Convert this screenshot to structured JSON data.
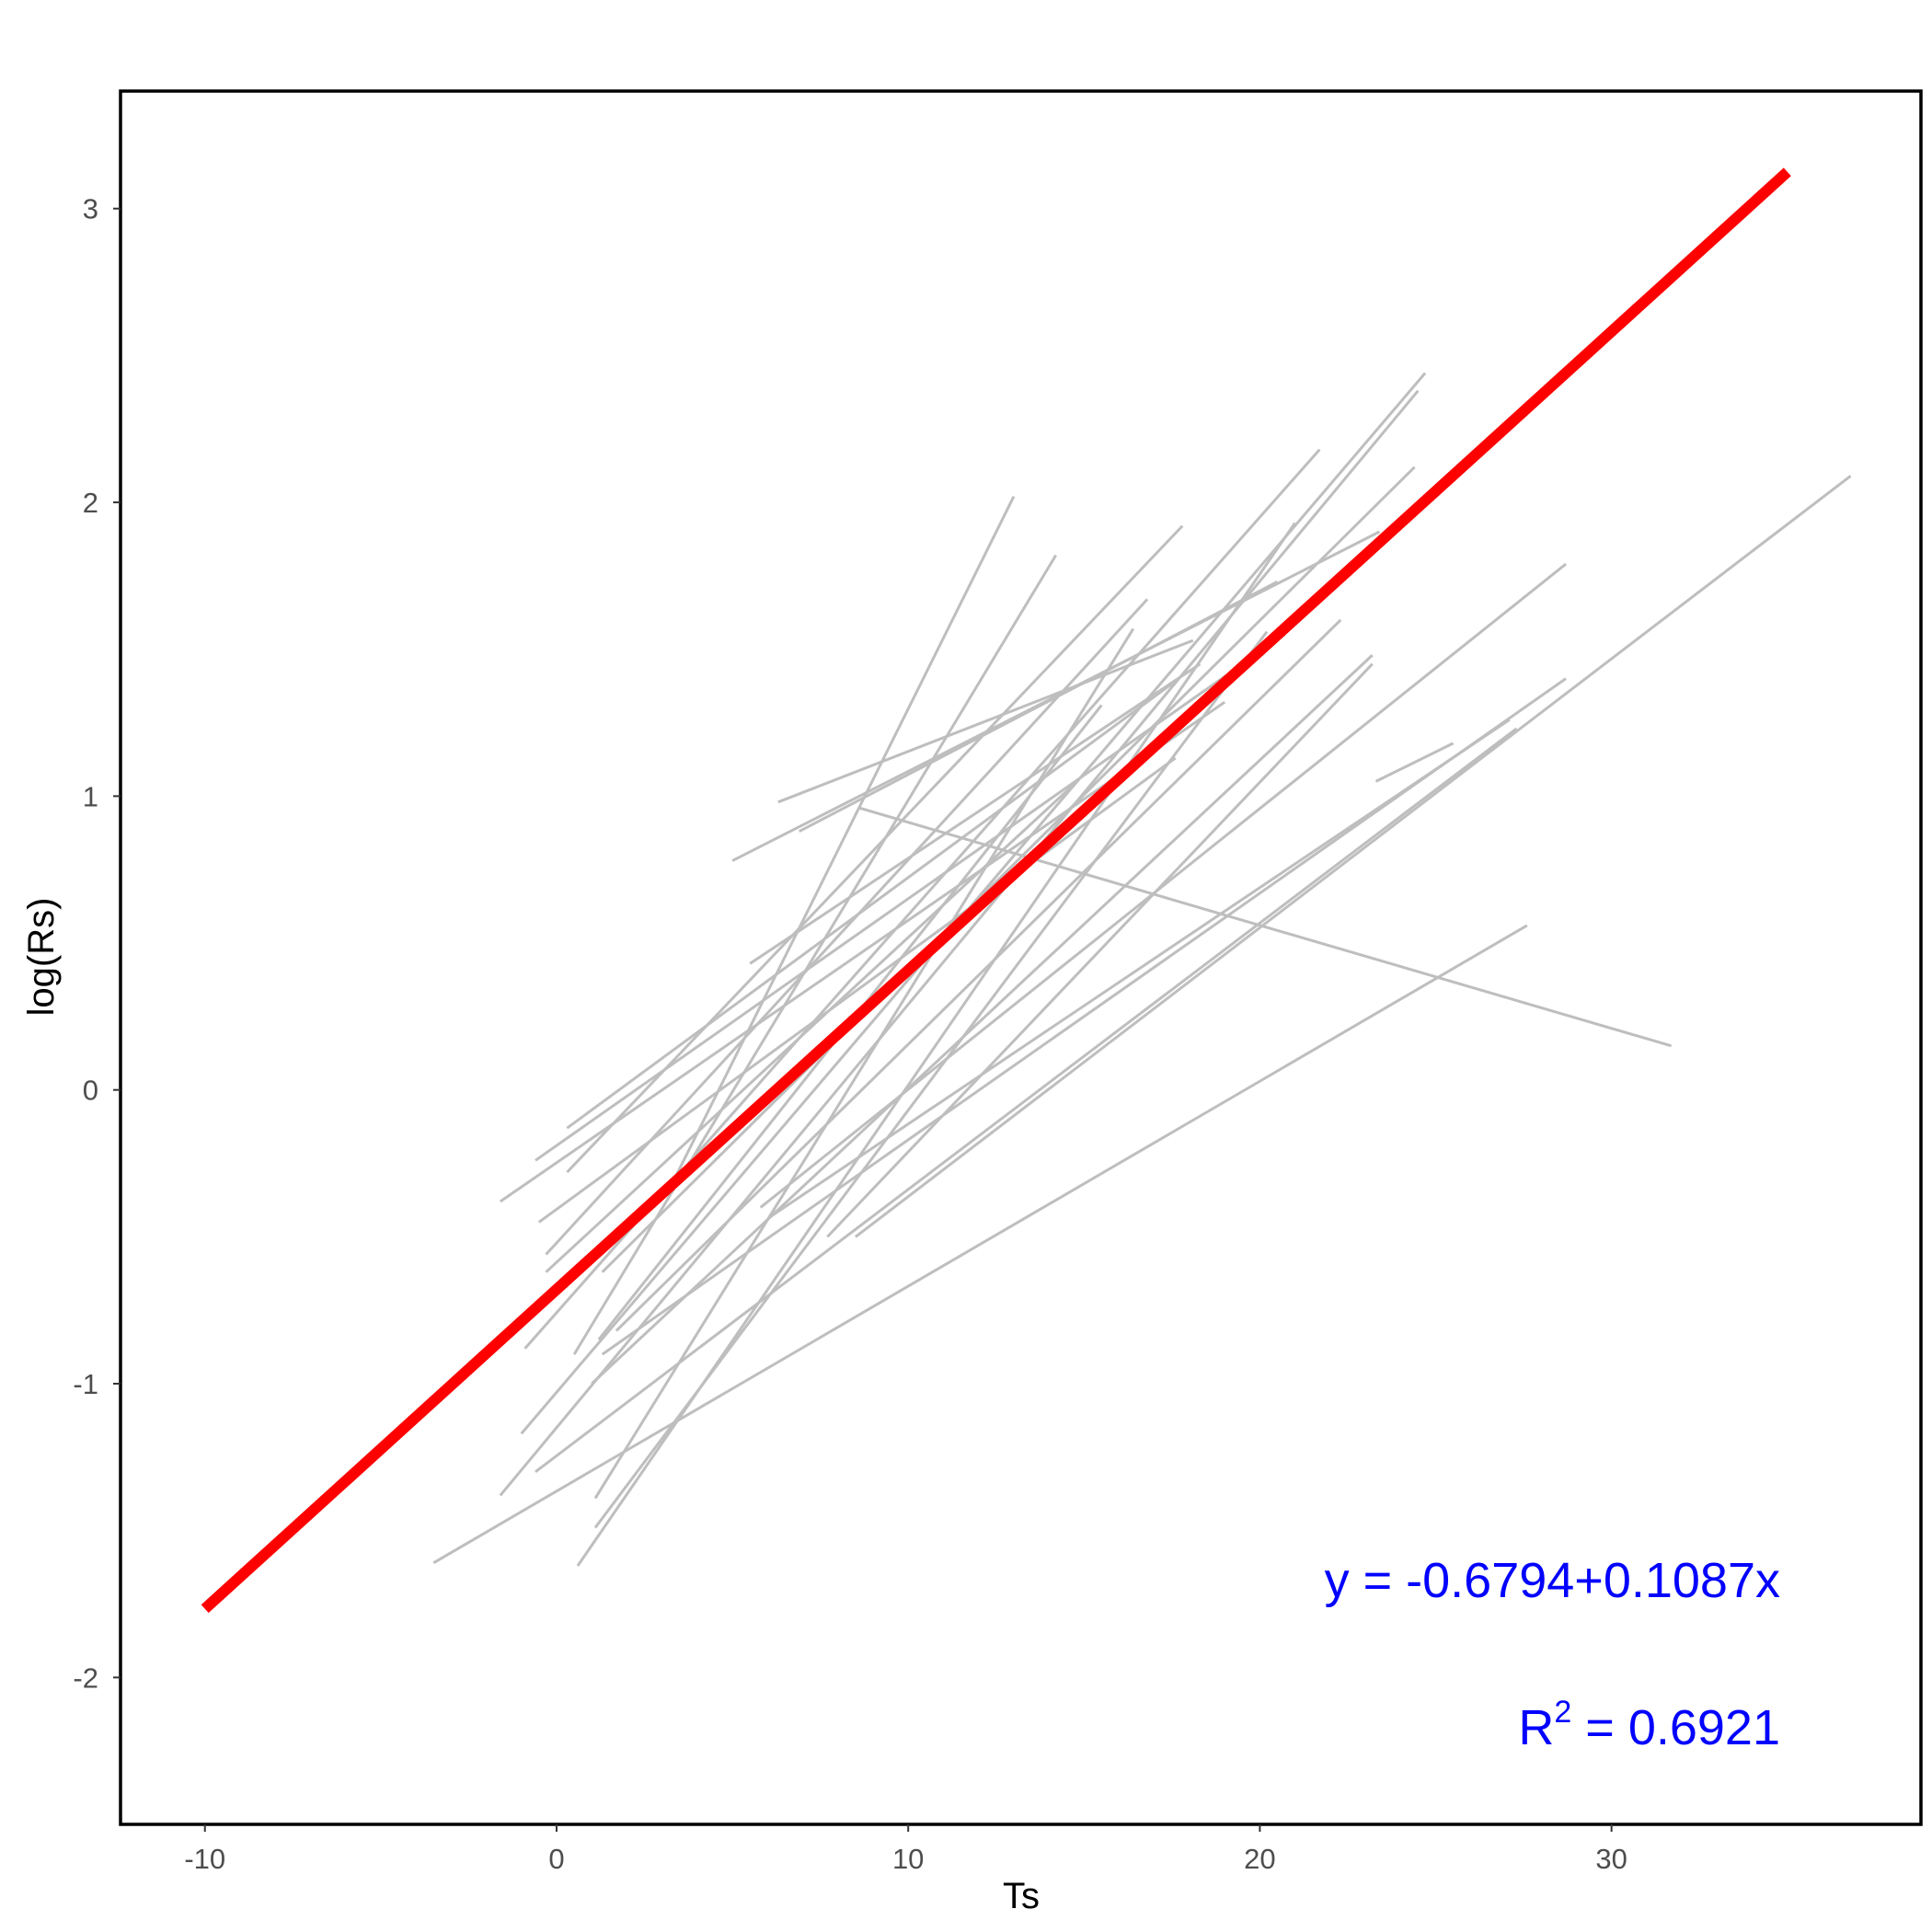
{
  "chart_data": {
    "type": "line",
    "xlabel": "Ts",
    "ylabel": "log(Rs)",
    "xlim": [
      -12.4,
      38.8
    ],
    "ylim": [
      -2.5,
      3.4
    ],
    "xticks": [
      -10,
      0,
      10,
      20,
      30
    ],
    "yticks": [
      -2,
      -1,
      0,
      1,
      2,
      3
    ],
    "grid": false,
    "fit": {
      "intercept": -0.6794,
      "slope": 0.1087,
      "x_range": [
        -10,
        35
      ],
      "color": "#ff0000"
    },
    "equation_text": "y = -0.6794+0.1087x",
    "r2_label": "R",
    "r2_sup": "2",
    "r2_value": " = 0.6921",
    "annotation_color": "#0000ff",
    "segment_color": "#bebebe",
    "segments": [
      [
        [
          13.0,
          2.02
        ],
        [
          3.2,
          -0.34
        ]
      ],
      [
        [
          14.2,
          1.82
        ],
        [
          0.5,
          -0.9
        ]
      ],
      [
        [
          17.8,
          1.92
        ],
        [
          0.3,
          -0.28
        ]
      ],
      [
        [
          21.7,
          2.18
        ],
        [
          -0.9,
          -0.88
        ]
      ],
      [
        [
          24.5,
          2.38
        ],
        [
          -1.6,
          -1.38
        ]
      ],
      [
        [
          24.7,
          2.44
        ],
        [
          -1.0,
          -1.17
        ]
      ],
      [
        [
          24.4,
          2.12
        ],
        [
          1.3,
          -0.62
        ]
      ],
      [
        [
          23.4,
          1.9
        ],
        [
          5.0,
          0.78
        ]
      ],
      [
        [
          22.3,
          1.6
        ],
        [
          1.7,
          -0.82
        ]
      ],
      [
        [
          23.2,
          1.48
        ],
        [
          1.0,
          -1.0
        ]
      ],
      [
        [
          23.2,
          1.45
        ],
        [
          7.7,
          -0.5
        ]
      ],
      [
        [
          21.0,
          1.93
        ],
        [
          0.6,
          -1.62
        ]
      ],
      [
        [
          20.7,
          1.55
        ],
        [
          -0.6,
          -0.24
        ]
      ],
      [
        [
          19.0,
          1.32
        ],
        [
          -1.6,
          -0.38
        ]
      ],
      [
        [
          17.6,
          1.13
        ],
        [
          -0.5,
          -0.45
        ]
      ],
      [
        [
          16.8,
          1.67
        ],
        [
          -0.3,
          -0.56
        ]
      ],
      [
        [
          20.2,
          1.56
        ],
        [
          1.1,
          -1.49
        ]
      ],
      [
        [
          16.4,
          1.57
        ],
        [
          1.1,
          -1.39
        ]
      ],
      [
        [
          18.3,
          1.45
        ],
        [
          5.5,
          0.43
        ]
      ],
      [
        [
          20.5,
          1.73
        ],
        [
          6.9,
          0.88
        ]
      ],
      [
        [
          18.1,
          1.53
        ],
        [
          6.3,
          0.98
        ]
      ],
      [
        [
          17.7,
          1.4
        ],
        [
          0.3,
          -0.13
        ]
      ],
      [
        [
          15.5,
          1.31
        ],
        [
          1.2,
          -0.85
        ]
      ],
      [
        [
          14.8,
          1.05
        ],
        [
          -0.3,
          -0.62
        ]
      ],
      [
        [
          28.7,
          1.79
        ],
        [
          5.8,
          -0.4
        ]
      ],
      [
        [
          36.8,
          2.09
        ],
        [
          8.5,
          -0.5
        ]
      ],
      [
        [
          28.7,
          1.4
        ],
        [
          1.3,
          -0.9
        ]
      ],
      [
        [
          27.3,
          1.23
        ],
        [
          -0.6,
          -1.3
        ]
      ],
      [
        [
          27.1,
          1.26
        ],
        [
          6.1,
          -0.43
        ]
      ],
      [
        [
          25.5,
          1.18
        ],
        [
          23.3,
          1.05
        ]
      ],
      [
        [
          27.6,
          0.56
        ],
        [
          -3.5,
          -1.61
        ]
      ],
      [
        [
          8.6,
          0.96
        ],
        [
          31.7,
          0.15
        ]
      ]
    ]
  }
}
